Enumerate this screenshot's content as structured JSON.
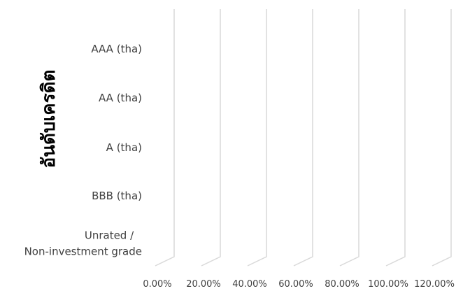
{
  "chart_data": {
    "type": "bar",
    "orientation": "horizontal",
    "style": "3d",
    "categories": [
      "AAA (tha)",
      "AA (tha)",
      "A (tha)",
      "BBB (tha)",
      "Unrated / Non-investment grade"
    ],
    "category_label_lines": [
      [
        "AAA (tha)"
      ],
      [
        "AA (tha)"
      ],
      [
        "A (tha)"
      ],
      [
        "BBB (tha)"
      ],
      [
        "Unrated /",
        "Non-investment grade"
      ]
    ],
    "series": [
      {
        "values": [
          0,
          0,
          0,
          0,
          0
        ]
      }
    ],
    "x_ticks": [
      "0.00%",
      "20.00%",
      "40.00%",
      "60.00%",
      "80.00%",
      "100.00%",
      "120.00%"
    ],
    "xlim": [
      0,
      1.2
    ],
    "ylabel": "อันดับเครดิต",
    "xlabel": "",
    "grid": true,
    "legend": "none",
    "colors": {
      "grid": "#d9d9d9",
      "text": "#404040",
      "axis_title": "#000000"
    }
  }
}
